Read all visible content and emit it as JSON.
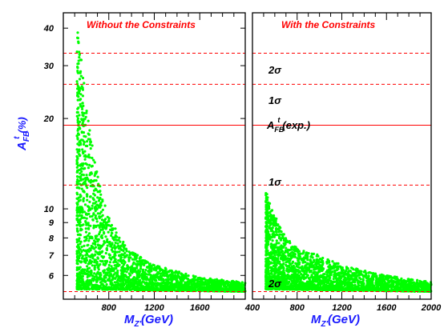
{
  "chart_data": [
    {
      "type": "scatter",
      "title": "Without the Constraints",
      "xlabel": "M_{Z'}(GeV)",
      "ylabel": "A_{FB}^{t} (%)",
      "xlim": [
        400,
        2000
      ],
      "ylim": [
        5,
        45
      ],
      "yscale": "log",
      "x_ticks": [
        "800",
        "1200",
        "1600"
      ],
      "y_ticks": [
        "6",
        "7",
        "8",
        "9",
        "10",
        "20",
        "30",
        "40"
      ],
      "y_tick_values": [
        6,
        7,
        8,
        9,
        10,
        20,
        30,
        40
      ],
      "x_tick_values": [
        800,
        1200,
        1600
      ],
      "reference_lines": [
        {
          "value": 19.0,
          "label": "A_FB^t(exp.)",
          "style": "solid"
        },
        {
          "value": 33.0,
          "label": "2σ",
          "style": "dashed"
        },
        {
          "value": 26.0,
          "label": "1σ",
          "style": "dashed"
        },
        {
          "value": 12.0,
          "label": "1σ",
          "style": "dashed"
        },
        {
          "value": 5.3,
          "label": "2σ",
          "style": "dashed"
        }
      ],
      "series": [
        {
          "color": "#00ff00",
          "points_summary": "dense band; A_FB falls from ~40% near M_Z' = 500 GeV to ~5.5% at 2000 GeV",
          "x_min": 520,
          "x_max": 2000,
          "y_upper": [
            [
              520,
              40
            ],
            [
              560,
              33
            ],
            [
              600,
              22
            ],
            [
              700,
              13
            ],
            [
              800,
              9.5
            ],
            [
              900,
              8
            ],
            [
              1000,
              7.2
            ],
            [
              1200,
              6.5
            ],
            [
              1600,
              5.9
            ],
            [
              2000,
              5.7
            ]
          ],
          "y_lower": [
            [
              520,
              5.4
            ],
            [
              2000,
              5.3
            ]
          ]
        }
      ],
      "grid": false
    },
    {
      "type": "scatter",
      "title": "With the Constraints",
      "xlabel": "M_{Z'}(GeV)",
      "ylabel": "",
      "xlim": [
        400,
        2000
      ],
      "ylim": [
        5,
        45
      ],
      "yscale": "log",
      "x_ticks": [
        "400",
        "800",
        "1200",
        "1600",
        "2000"
      ],
      "x_tick_values": [
        400,
        800,
        1200,
        1600,
        2000
      ],
      "reference_lines": [
        {
          "value": 19.0,
          "label": "A_FB^t(exp.)",
          "style": "solid"
        },
        {
          "value": 33.0,
          "label": "2σ",
          "style": "dashed"
        },
        {
          "value": 26.0,
          "label": "1σ",
          "style": "dashed"
        },
        {
          "value": 12.0,
          "label": "1σ",
          "style": "dashed"
        },
        {
          "value": 5.3,
          "label": "2σ",
          "style": "dashed"
        }
      ],
      "series": [
        {
          "color": "#00ff00",
          "points_summary": "dense band; A_FB at most ~11.5% near M_Z' = 520 GeV falling to ~5.7% at 2000 GeV",
          "x_min": 520,
          "x_max": 2000,
          "y_upper": [
            [
              520,
              11.5
            ],
            [
              600,
              9.5
            ],
            [
              700,
              8
            ],
            [
              800,
              7.4
            ],
            [
              1000,
              7
            ],
            [
              1200,
              6.5
            ],
            [
              1600,
              6
            ],
            [
              2000,
              5.7
            ]
          ],
          "y_lower": [
            [
              520,
              5.4
            ],
            [
              2000,
              5.3
            ]
          ]
        }
      ],
      "grid": false
    }
  ],
  "labels": {
    "sigma2": "2σ",
    "sigma1": "1σ",
    "afb_main": "A",
    "afb_sub": "FB",
    "afb_sup": "t",
    "afb_tail": "(exp.)",
    "ylabel_main": "A",
    "ylabel_sub": "FB",
    "ylabel_sup": "t",
    "ylabel_tail": "(%)",
    "xlabel_main": "M",
    "xlabel_sub": "Z'",
    "xlabel_tail": "(GeV)"
  },
  "colors": {
    "points": "#00ff00",
    "lines": "#ff0000",
    "axis_titles": "#1a1aff",
    "panel_titles": "#ff0000"
  }
}
